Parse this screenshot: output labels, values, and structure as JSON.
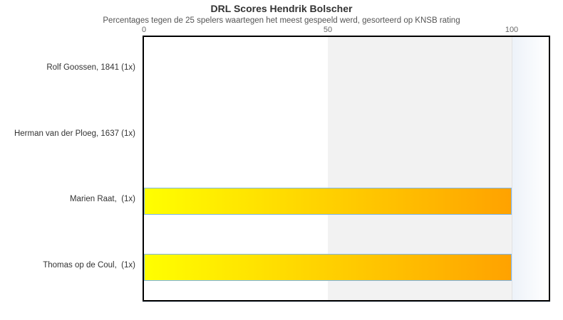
{
  "chart_data": {
    "type": "bar",
    "orientation": "horizontal",
    "title": "DRL Scores Hendrik Bolscher",
    "subtitle": "Percentages tegen de 25 spelers waartegen het meest gespeeld werd, gesorteerd op KNSB rating",
    "categories": [
      "Rolf Goossen, 1841 (1x)",
      "Herman van der Ploeg, 1637 (1x)",
      "Marien Raat,  (1x)",
      "Thomas op de Coul,  (1x)"
    ],
    "values": [
      0,
      0,
      100,
      100
    ],
    "xlabel": "",
    "ylabel": "",
    "x_ticks": [
      "0",
      "50",
      "100"
    ],
    "xlim": [
      0,
      110
    ],
    "grid": false,
    "legend": false,
    "axis_position": "top",
    "plot_bands": [
      {
        "from": 50,
        "to": 100,
        "color": "#f2f2f2"
      }
    ]
  },
  "colors": {
    "bar_gradient_start": "#ffff00",
    "bar_gradient_end": "#ffa200",
    "bar_border": "#7cb5ec",
    "plot_border": "#000000",
    "over_band_start": "#edf2f9",
    "over_band_end": "#ffffff",
    "axis_line": "#cdd9e8",
    "divider_line": "#e2e2e2",
    "title_color": "#333333",
    "subtitle_color": "#555555",
    "tick_label_color": "#666666",
    "category_label_color": "#333333"
  }
}
